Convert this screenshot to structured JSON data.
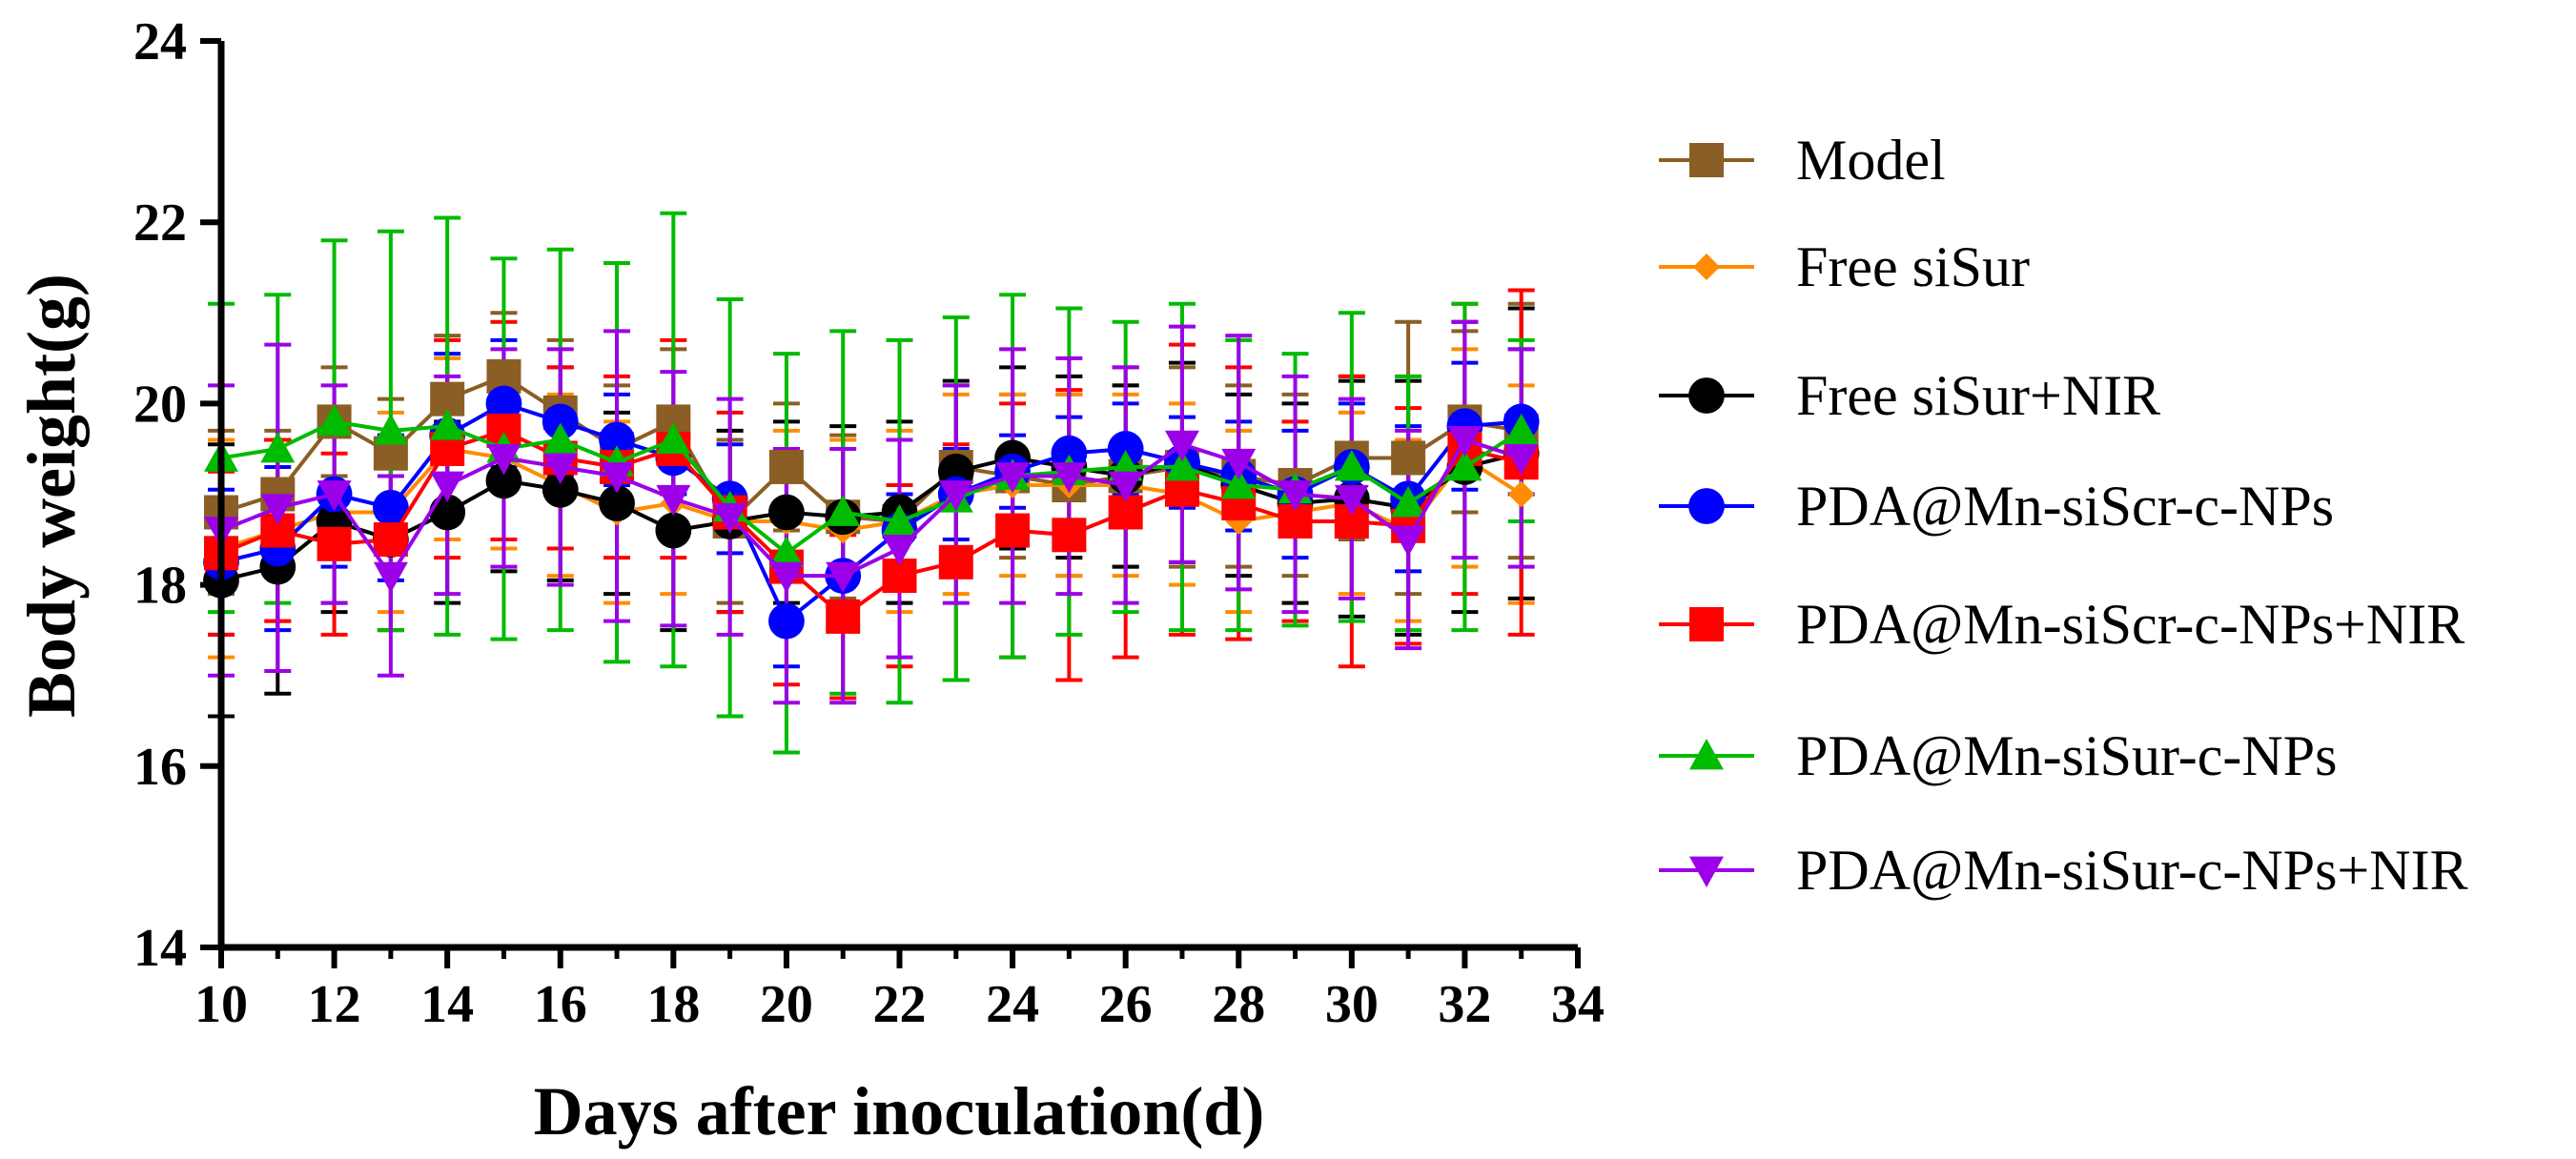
{
  "chart_data": {
    "type": "line",
    "title": "",
    "xlabel": "Days after inoculation(d)",
    "ylabel": "Body weight(g)",
    "xlim": [
      10,
      34
    ],
    "ylim": [
      14,
      24
    ],
    "xticks": [
      "10",
      "12",
      "14",
      "16",
      "18",
      "20",
      "22",
      "24",
      "26",
      "28",
      "30",
      "32",
      "34"
    ],
    "yticks": [
      "14",
      "16",
      "18",
      "20",
      "22",
      "24"
    ],
    "legend_position": "right",
    "grid": false,
    "x": [
      10,
      11,
      12,
      13,
      14,
      15,
      16,
      17,
      18,
      19,
      20,
      21,
      22,
      23,
      24,
      25,
      26,
      27,
      28,
      29,
      30,
      31,
      32,
      33
    ],
    "series": [
      {
        "name": "Model",
        "color": "#8B5E25",
        "marker": "square",
        "values": [
          18.8,
          19.0,
          19.8,
          19.45,
          20.05,
          20.3,
          19.9,
          19.5,
          19.8,
          18.7,
          19.3,
          18.75,
          18.7,
          19.3,
          19.2,
          19.1,
          19.2,
          19.3,
          19.2,
          19.1,
          19.4,
          19.4,
          19.8,
          19.7
        ],
        "sd": [
          0.9,
          0.7,
          0.6,
          0.6,
          0.7,
          0.7,
          0.8,
          0.7,
          0.8,
          0.9,
          0.7,
          0.9,
          0.9,
          0.9,
          0.9,
          1.0,
          1.0,
          1.1,
          1.0,
          1.0,
          0.9,
          1.5,
          1.0,
          1.4
        ]
      },
      {
        "name": "Free siSur",
        "color": "#FF8C00",
        "marker": "diamond",
        "values": [
          18.4,
          18.6,
          18.8,
          18.8,
          19.5,
          19.4,
          19.1,
          18.8,
          18.9,
          18.7,
          18.7,
          18.6,
          18.7,
          19.0,
          19.1,
          19.1,
          19.1,
          19.0,
          18.7,
          18.8,
          18.9,
          18.6,
          19.4,
          19.0
        ],
        "sd": [
          1.2,
          1.0,
          1.0,
          1.1,
          1.0,
          1.0,
          1.0,
          1.0,
          1.0,
          1.0,
          1.0,
          1.0,
          1.0,
          1.1,
          1.0,
          1.0,
          1.0,
          1.0,
          1.0,
          1.0,
          1.0,
          1.0,
          1.2,
          1.2
        ]
      },
      {
        "name": "Free siSur+NIR",
        "color": "#000000",
        "marker": "circle",
        "values": [
          18.05,
          18.2,
          18.7,
          18.5,
          18.8,
          19.15,
          19.05,
          18.9,
          18.6,
          18.7,
          18.8,
          18.75,
          18.8,
          19.25,
          19.4,
          19.3,
          19.2,
          19.35,
          19.1,
          18.9,
          18.95,
          18.85,
          19.3,
          19.45
        ],
        "sd": [
          1.5,
          1.4,
          1.0,
          1.0,
          1.0,
          1.0,
          1.0,
          1.0,
          1.1,
          1.0,
          1.0,
          1.0,
          1.0,
          1.0,
          1.0,
          1.0,
          1.0,
          1.1,
          1.0,
          1.1,
          1.3,
          1.4,
          1.6,
          1.6
        ]
      },
      {
        "name": "PDA@Mn-siScr-c-NPs",
        "color": "#0000FF",
        "marker": "circle",
        "values": [
          18.25,
          18.4,
          19.0,
          18.85,
          19.65,
          20.0,
          19.8,
          19.6,
          19.4,
          18.95,
          17.6,
          18.1,
          18.6,
          19.0,
          19.25,
          19.45,
          19.5,
          19.35,
          19.2,
          19.0,
          19.3,
          18.95,
          19.75,
          19.8
        ],
        "sd": [
          0.8,
          0.9,
          0.8,
          0.8,
          0.9,
          0.7,
          0.6,
          0.5,
          0.4,
          0.6,
          0.5,
          0.5,
          0.4,
          0.5,
          0.4,
          0.4,
          0.5,
          0.5,
          0.6,
          0.7,
          0.7,
          0.8,
          0.7,
          0.8
        ]
      },
      {
        "name": "PDA@Mn-siScr-c-NPs+NIR",
        "color": "#FF0000",
        "marker": "square",
        "values": [
          18.35,
          18.6,
          18.45,
          18.5,
          19.5,
          19.7,
          19.4,
          19.3,
          19.5,
          18.8,
          18.2,
          17.65,
          18.1,
          18.25,
          18.6,
          18.55,
          18.8,
          19.05,
          18.9,
          18.7,
          18.7,
          18.65,
          19.5,
          19.35
        ],
        "sd": [
          0.9,
          1.0,
          1.0,
          1.0,
          1.2,
          1.2,
          1.0,
          1.0,
          1.2,
          1.1,
          1.3,
          0.9,
          1.0,
          1.3,
          1.4,
          1.6,
          1.6,
          1.6,
          1.5,
          1.1,
          1.6,
          1.3,
          1.6,
          1.9
        ]
      },
      {
        "name": "PDA@Mn-siSur-c-NPs",
        "color": "#00BB00",
        "marker": "triangle-up",
        "values": [
          19.4,
          19.5,
          19.8,
          19.7,
          19.75,
          19.5,
          19.6,
          19.35,
          19.6,
          18.85,
          18.35,
          18.8,
          18.7,
          18.95,
          19.2,
          19.25,
          19.3,
          19.3,
          19.1,
          19.05,
          19.3,
          18.9,
          19.3,
          19.7
        ],
        "sd": [
          1.7,
          1.7,
          2.0,
          2.2,
          2.3,
          2.1,
          2.1,
          2.2,
          2.5,
          2.3,
          2.2,
          2.0,
          2.0,
          2.0,
          2.0,
          1.8,
          1.6,
          1.8,
          1.6,
          1.5,
          1.7,
          1.4,
          1.8,
          1.0
        ]
      },
      {
        "name": "PDA@Mn-siSur-c-NPs+NIR",
        "color": "#9B00E8",
        "marker": "triangle-down",
        "values": [
          18.6,
          18.85,
          19.0,
          18.1,
          19.1,
          19.4,
          19.3,
          19.2,
          18.95,
          18.75,
          18.1,
          18.1,
          18.4,
          19.0,
          19.2,
          19.2,
          19.1,
          19.55,
          19.35,
          19.0,
          18.95,
          18.5,
          19.6,
          19.4
        ],
        "sd": [
          1.6,
          1.8,
          1.2,
          1.1,
          1.2,
          1.2,
          1.3,
          1.6,
          1.4,
          1.3,
          1.4,
          1.4,
          1.2,
          1.2,
          1.4,
          1.3,
          1.3,
          1.3,
          1.4,
          1.3,
          1.1,
          1.2,
          1.3,
          1.2
        ]
      }
    ]
  }
}
